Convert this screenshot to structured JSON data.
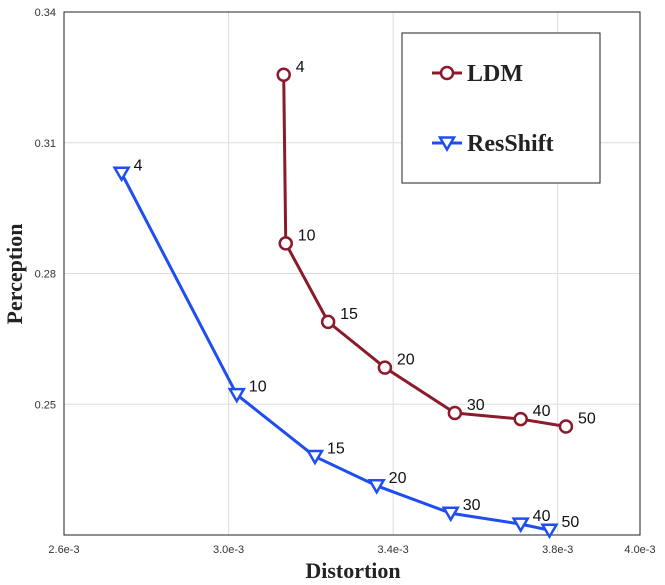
{
  "chart_data": {
    "type": "line",
    "title": "",
    "xlabel": "Distortion",
    "ylabel": "Perception",
    "xlim": [
      0.0026,
      0.004
    ],
    "ylim": [
      0.22,
      0.34
    ],
    "x_ticks": [
      0.0026,
      0.003,
      0.0034,
      0.0038,
      0.004
    ],
    "x_tick_labels": [
      "2.6e-3",
      "3.0e-3",
      "3.4e-3",
      "3.8e-3",
      "4.0e-3"
    ],
    "y_ticks": [
      0.25,
      0.28,
      0.31,
      0.34
    ],
    "y_tick_labels": [
      "0.25",
      "0.28",
      "0.31",
      "0.34"
    ],
    "grid": true,
    "legend_position": "top-right",
    "series": [
      {
        "name": "LDM",
        "color": "#8b1a2b",
        "marker": "circle",
        "x": [
          0.003134,
          0.003139,
          0.003242,
          0.00338,
          0.00355,
          0.00371,
          0.00382
        ],
        "y": [
          0.3256,
          0.2869,
          0.2689,
          0.2584,
          0.248,
          0.2466,
          0.2449
        ],
        "point_labels": [
          "4",
          "10",
          "15",
          "20",
          "30",
          "40",
          "50"
        ]
      },
      {
        "name": "ResShift",
        "color": "#1f4ef0",
        "marker": "triangle-down",
        "x": [
          0.00274,
          0.00302,
          0.00321,
          0.00336,
          0.00354,
          0.00371,
          0.00378
        ],
        "y": [
          0.303,
          0.2522,
          0.238,
          0.2313,
          0.225,
          0.2225,
          0.2211
        ],
        "point_labels": [
          "4",
          "10",
          "15",
          "20",
          "30",
          "40",
          "50"
        ]
      }
    ]
  }
}
